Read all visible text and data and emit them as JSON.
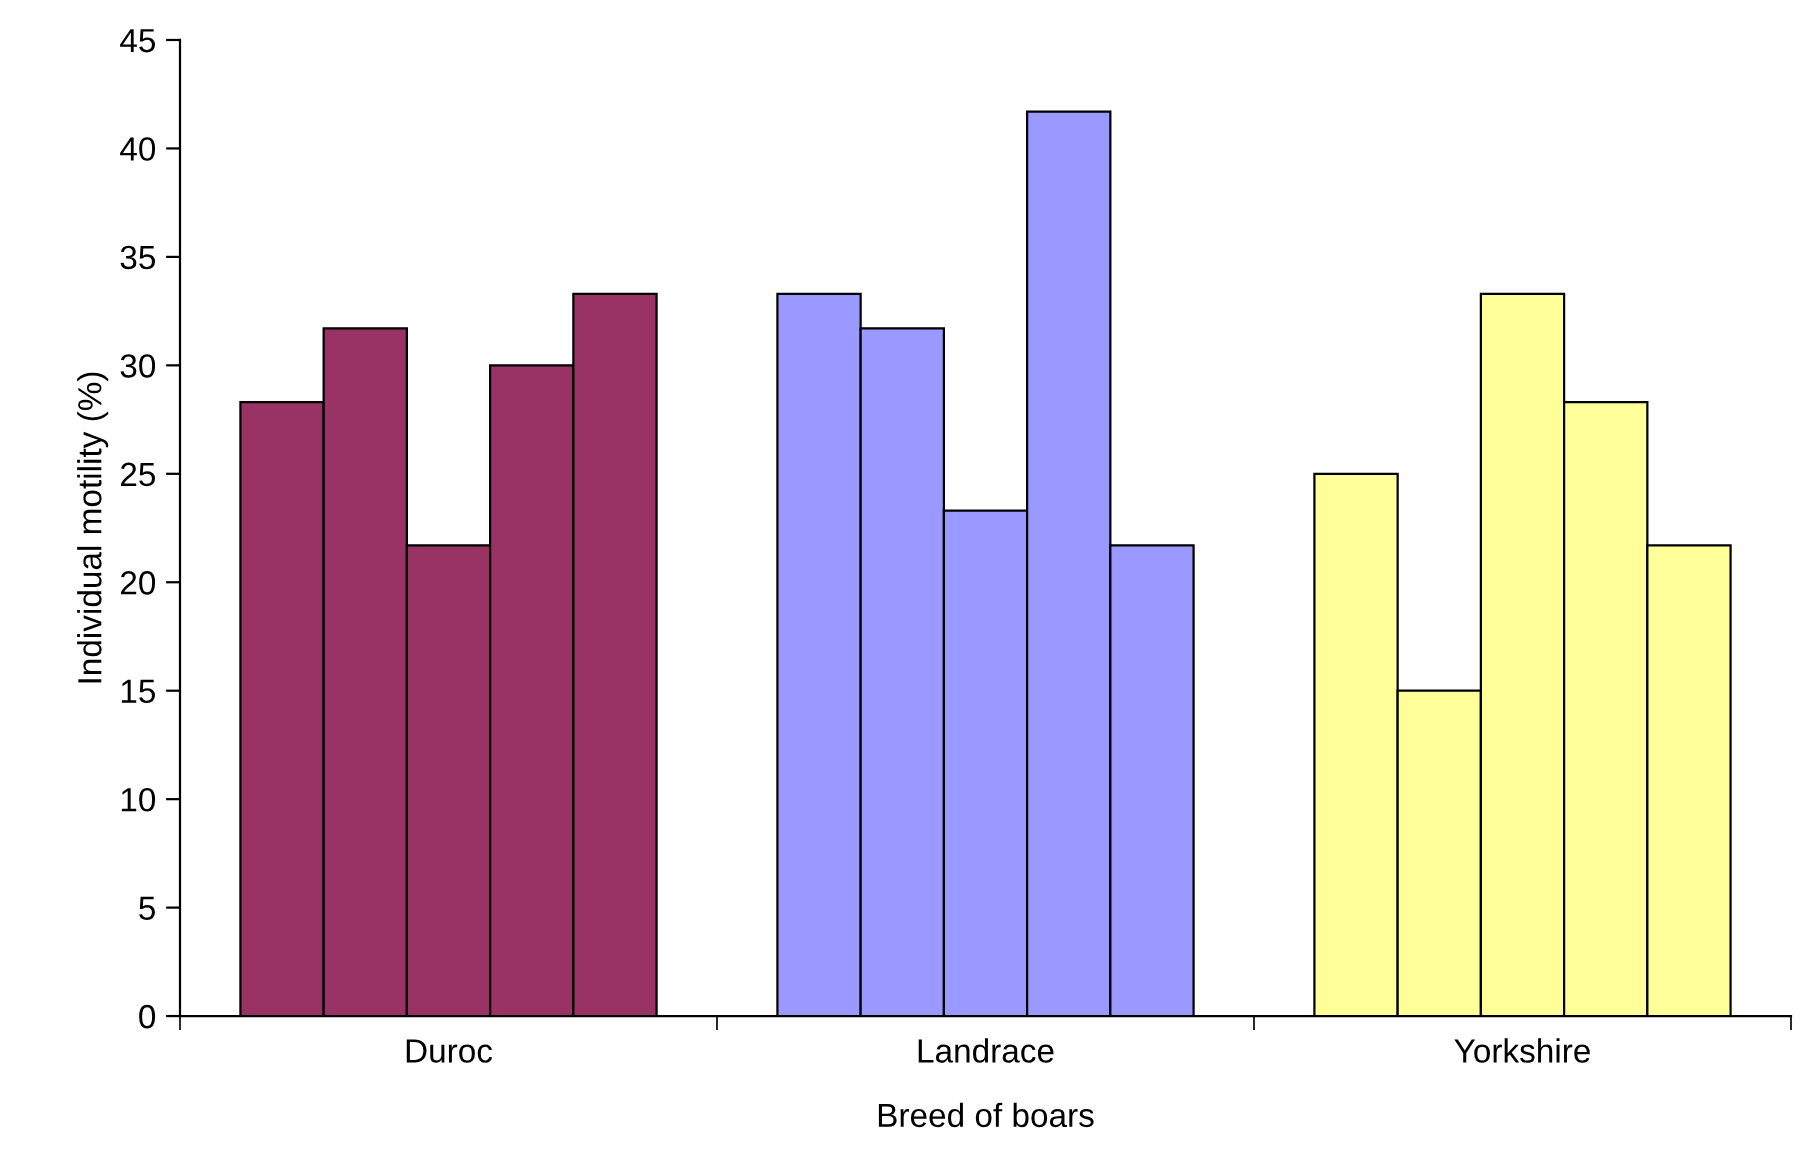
{
  "chart_data": {
    "type": "bar",
    "xlabel": "Breed of boars",
    "ylabel": "Individual motility (%)",
    "categories": [
      "Duroc",
      "Landrace",
      "Yorkshire"
    ],
    "series": [
      {
        "colors": [
          "#993366",
          "#9999ff",
          "#ffff99"
        ],
        "values": [
          28.3,
          33.3,
          25
        ]
      },
      {
        "colors": [
          "#993366",
          "#9999ff",
          "#ffff99"
        ],
        "values": [
          31.7,
          31.7,
          15
        ]
      },
      {
        "colors": [
          "#993366",
          "#9999ff",
          "#ffff99"
        ],
        "values": [
          21.7,
          23.3,
          33.3
        ]
      },
      {
        "colors": [
          "#993366",
          "#9999ff",
          "#ffff99"
        ],
        "values": [
          30,
          41.7,
          28.3
        ]
      },
      {
        "colors": [
          "#993366",
          "#9999ff",
          "#ffff99"
        ],
        "values": [
          33.3,
          21.7,
          21.7
        ]
      }
    ],
    "ylim": [
      0,
      45
    ],
    "yticks": [
      0,
      5,
      10,
      15,
      20,
      25,
      30,
      35,
      40,
      45
    ],
    "grid": false,
    "legend": false
  }
}
